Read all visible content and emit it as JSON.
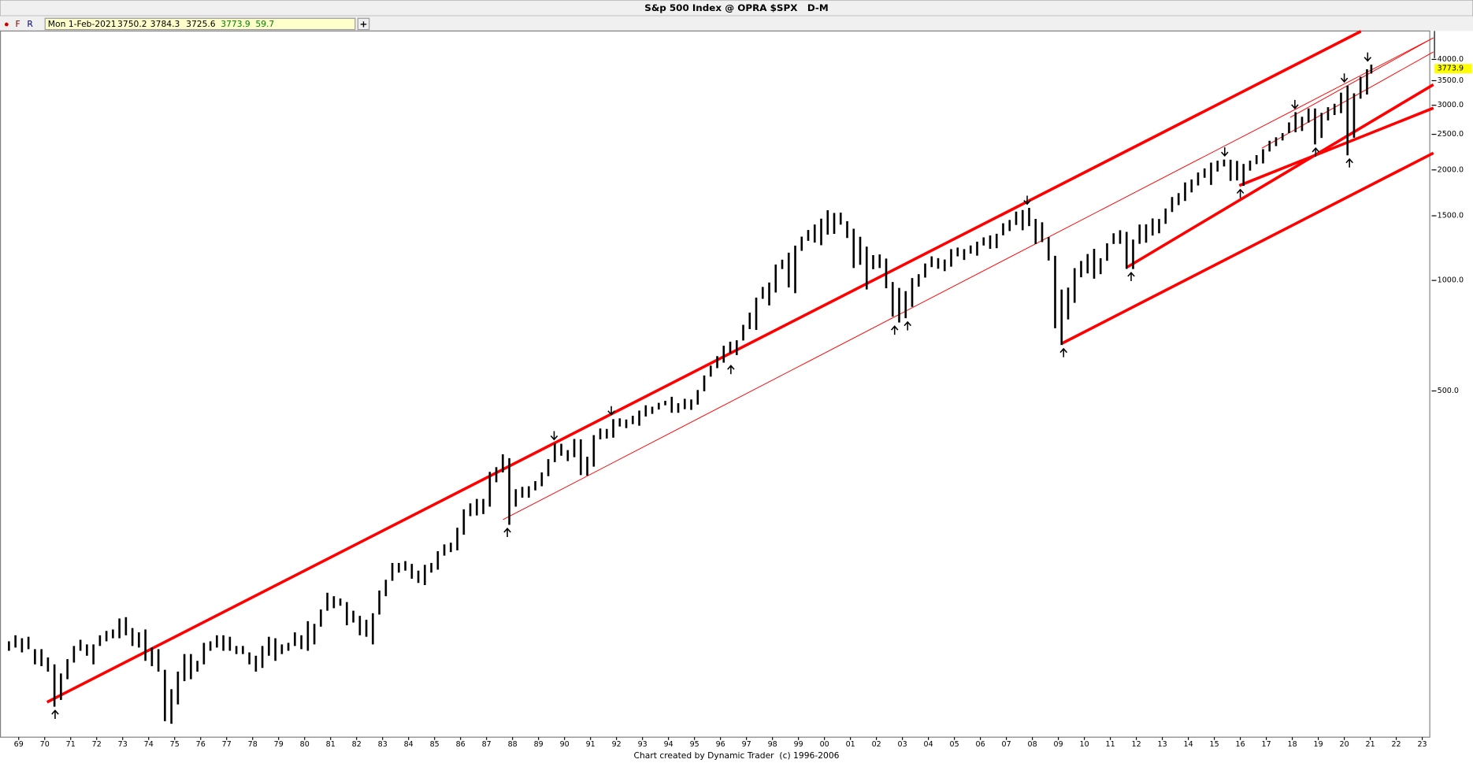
{
  "header": {
    "title": "S&p 500 Index @ OPRA $SPX   D-M",
    "buttons": [
      "F",
      "R"
    ],
    "add_button": "+",
    "readout": {
      "date": "Mon 1-Feb-2021",
      "open": "3750.2",
      "high": "3784.3",
      "low": "3725.6",
      "close": "3773.9",
      "change": "59.7"
    }
  },
  "footer": "Chart created by Dynamic Trader  (c) 1996-2006",
  "chart_data": {
    "type": "hilo",
    "log": true,
    "color": "#000000",
    "xlim": [
      1968.28,
      2023.29
    ],
    "ylim": [
      57,
      4780
    ],
    "yticks": [
      {
        "value": 500,
        "label": "500.0"
      },
      {
        "value": 1000,
        "label": "1000.0"
      },
      {
        "value": 1500,
        "label": "1500.0"
      },
      {
        "value": 2000,
        "label": "2000.0"
      },
      {
        "value": 2500,
        "label": "2500.0"
      },
      {
        "value": 3000,
        "label": "3000.0"
      },
      {
        "value": 3500,
        "label": "3500.0"
      },
      {
        "value": 4000,
        "label": "4000.0"
      }
    ],
    "xticks": [
      {
        "value": 1969,
        "label": "69"
      },
      {
        "value": 1970,
        "label": "70"
      },
      {
        "value": 1971,
        "label": "71"
      },
      {
        "value": 1972,
        "label": "72"
      },
      {
        "value": 1973,
        "label": "73"
      },
      {
        "value": 1974,
        "label": "74"
      },
      {
        "value": 1975,
        "label": "75"
      },
      {
        "value": 1976,
        "label": "76"
      },
      {
        "value": 1977,
        "label": "77"
      },
      {
        "value": 1978,
        "label": "78"
      },
      {
        "value": 1979,
        "label": "79"
      },
      {
        "value": 1980,
        "label": "80"
      },
      {
        "value": 1981,
        "label": "81"
      },
      {
        "value": 1982,
        "label": "82"
      },
      {
        "value": 1983,
        "label": "83"
      },
      {
        "value": 1984,
        "label": "84"
      },
      {
        "value": 1985,
        "label": "85"
      },
      {
        "value": 1986,
        "label": "86"
      },
      {
        "value": 1987,
        "label": "87"
      },
      {
        "value": 1988,
        "label": "88"
      },
      {
        "value": 1989,
        "label": "89"
      },
      {
        "value": 1990,
        "label": "90"
      },
      {
        "value": 1991,
        "label": "91"
      },
      {
        "value": 1992,
        "label": "92"
      },
      {
        "value": 1993,
        "label": "93"
      },
      {
        "value": 1994,
        "label": "94"
      },
      {
        "value": 1995,
        "label": "95"
      },
      {
        "value": 1996,
        "label": "96"
      },
      {
        "value": 1997,
        "label": "97"
      },
      {
        "value": 1998,
        "label": "98"
      },
      {
        "value": 1999,
        "label": "99"
      },
      {
        "value": 2000,
        "label": "00"
      },
      {
        "value": 2001,
        "label": "01"
      },
      {
        "value": 2002,
        "label": "02"
      },
      {
        "value": 2003,
        "label": "03"
      },
      {
        "value": 2004,
        "label": "04"
      },
      {
        "value": 2005,
        "label": "05"
      },
      {
        "value": 2006,
        "label": "06"
      },
      {
        "value": 2007,
        "label": "07"
      },
      {
        "value": 2008,
        "label": "08"
      },
      {
        "value": 2009,
        "label": "09"
      },
      {
        "value": 2010,
        "label": "10"
      },
      {
        "value": 2011,
        "label": "11"
      },
      {
        "value": 2012,
        "label": "12"
      },
      {
        "value": 2013,
        "label": "13"
      },
      {
        "value": 2014,
        "label": "14"
      },
      {
        "value": 2015,
        "label": "15"
      },
      {
        "value": 2016,
        "label": "16"
      },
      {
        "value": 2017,
        "label": "17"
      },
      {
        "value": 2018,
        "label": "18"
      },
      {
        "value": 2019,
        "label": "19"
      },
      {
        "value": 2020,
        "label": "20"
      },
      {
        "value": 2021,
        "label": "21"
      },
      {
        "value": 2022,
        "label": "22"
      },
      {
        "value": 2023,
        "label": "23"
      }
    ],
    "last_price": 3773.9,
    "last_price_color": "#ffff00",
    "x": [
      1968.625,
      1968.875,
      1969.125,
      1969.375,
      1969.625,
      1969.875,
      1970.125,
      1970.375,
      1970.625,
      1970.875,
      1971.125,
      1971.375,
      1971.625,
      1971.875,
      1972.125,
      1972.375,
      1972.625,
      1972.875,
      1973.125,
      1973.375,
      1973.625,
      1973.875,
      1974.125,
      1974.375,
      1974.625,
      1974.875,
      1975.125,
      1975.375,
      1975.625,
      1975.875,
      1976.125,
      1976.375,
      1976.625,
      1976.875,
      1977.125,
      1977.375,
      1977.625,
      1977.875,
      1978.125,
      1978.375,
      1978.625,
      1978.875,
      1979.125,
      1979.375,
      1979.625,
      1979.875,
      1980.125,
      1980.375,
      1980.625,
      1980.875,
      1981.125,
      1981.375,
      1981.625,
      1981.875,
      1982.125,
      1982.375,
      1982.625,
      1982.875,
      1983.125,
      1983.375,
      1983.625,
      1983.875,
      1984.125,
      1984.375,
      1984.625,
      1984.875,
      1985.125,
      1985.375,
      1985.625,
      1985.875,
      1986.125,
      1986.375,
      1986.625,
      1986.875,
      1987.125,
      1987.375,
      1987.625,
      1987.875,
      1988.125,
      1988.375,
      1988.625,
      1988.875,
      1989.125,
      1989.375,
      1989.625,
      1989.875,
      1990.125,
      1990.375,
      1990.625,
      1990.875,
      1991.125,
      1991.375,
      1991.625,
      1991.875,
      1992.125,
      1992.375,
      1992.625,
      1992.875,
      1993.125,
      1993.375,
      1993.625,
      1993.875,
      1994.125,
      1994.375,
      1994.625,
      1994.875,
      1995.125,
      1995.375,
      1995.625,
      1995.875,
      1996.125,
      1996.375,
      1996.625,
      1996.875,
      1997.125,
      1997.375,
      1997.625,
      1997.875,
      1998.125,
      1998.375,
      1998.625,
      1998.875,
      1999.125,
      1999.375,
      1999.625,
      1999.875,
      2000.125,
      2000.375,
      2000.625,
      2000.875,
      2001.125,
      2001.375,
      2001.625,
      2001.875,
      2002.125,
      2002.375,
      2002.625,
      2002.875,
      2003.125,
      2003.375,
      2003.625,
      2003.875,
      2004.125,
      2004.375,
      2004.625,
      2004.875,
      2005.125,
      2005.375,
      2005.625,
      2005.875,
      2006.125,
      2006.375,
      2006.625,
      2006.875,
      2007.125,
      2007.375,
      2007.625,
      2007.875,
      2008.125,
      2008.375,
      2008.625,
      2008.875,
      2009.125,
      2009.375,
      2009.625,
      2009.875,
      2010.125,
      2010.375,
      2010.625,
      2010.875,
      2011.125,
      2011.375,
      2011.625,
      2011.875,
      2012.125,
      2012.375,
      2012.625,
      2012.875,
      2013.125,
      2013.375,
      2013.625,
      2013.875,
      2014.125,
      2014.375,
      2014.625,
      2014.875,
      2015.125,
      2015.375,
      2015.625,
      2015.875,
      2016.125,
      2016.375,
      2016.625,
      2016.875,
      2017.125,
      2017.375,
      2017.625,
      2017.875,
      2018.125,
      2018.375,
      2018.625,
      2018.875,
      2019.125,
      2019.375,
      2019.625,
      2019.875,
      2020.125,
      2020.375,
      2020.625,
      2020.875,
      2021.04
    ],
    "high": [
      104,
      108,
      106,
      107,
      99,
      99,
      94,
      90,
      85,
      93,
      101,
      105,
      102,
      102,
      108,
      111,
      112,
      120,
      121,
      113,
      110,
      112,
      100,
      99,
      87,
      77,
      86,
      96,
      96,
      92,
      103,
      104,
      108,
      108,
      107,
      101,
      101,
      97,
      95,
      101,
      107,
      106,
      102,
      103,
      110,
      108,
      118,
      116,
      127,
      141,
      138,
      136,
      133,
      126,
      122,
      119,
      124,
      143,
      153,
      170,
      170,
      172,
      169,
      162,
      168,
      170,
      183,
      191,
      193,
      212,
      238,
      247,
      254,
      254,
      301,
      310,
      336,
      328,
      270,
      274,
      275,
      284,
      300,
      326,
      360,
      359,
      345,
      370,
      369,
      331,
      379,
      395,
      394,
      419,
      421,
      418,
      428,
      442,
      457,
      453,
      464,
      470,
      482,
      463,
      476,
      474,
      503,
      551,
      586,
      622,
      664,
      681,
      687,
      757,
      817,
      898,
      960,
      987,
      1105,
      1139,
      1190,
      1244,
      1316,
      1372,
      1420,
      1473,
      1553,
      1527,
      1530,
      1450,
      1383,
      1315,
      1236,
      1172,
      1177,
      1147,
      990,
      954,
      935,
      1015,
      1040,
      1112,
      1163,
      1150,
      1140,
      1217,
      1229,
      1217,
      1245,
      1275,
      1310,
      1326,
      1340,
      1431,
      1461,
      1540,
      1555,
      1576,
      1471,
      1440,
      1313,
      1167,
      944,
      956,
      1080,
      1130,
      1180,
      1219,
      1149,
      1262,
      1344,
      1370,
      1356,
      1292,
      1420,
      1422,
      1475,
      1470,
      1570,
      1687,
      1729,
      1849,
      1884,
      1968,
      2019,
      2094,
      2119,
      2134,
      2132,
      2116,
      2076,
      2120,
      2194,
      2278,
      2401,
      2454,
      2519,
      2694,
      2873,
      2791,
      2941,
      2940,
      2860,
      2964,
      3028,
      3247,
      3394,
      3233,
      3588,
      3760,
      3870
    ],
    "low": [
      98,
      100,
      97,
      99,
      90,
      89,
      86,
      69,
      72,
      82,
      91,
      98,
      95,
      90,
      101,
      104,
      106,
      106,
      108,
      101,
      100,
      92,
      89,
      86,
      63,
      62,
      70,
      81,
      82,
      86,
      90,
      98,
      100,
      98,
      98,
      96,
      96,
      90,
      86,
      88,
      95,
      92,
      96,
      98,
      101,
      99,
      98,
      102,
      114,
      126,
      128,
      130,
      115,
      117,
      108,
      107,
      102,
      123,
      138,
      152,
      160,
      162,
      154,
      150,
      148,
      160,
      163,
      178,
      182,
      184,
      203,
      228,
      229,
      231,
      242,
      282,
      300,
      216,
      242,
      256,
      256,
      268,
      275,
      293,
      320,
      333,
      322,
      330,
      295,
      294,
      311,
      369,
      371,
      373,
      400,
      396,
      406,
      402,
      426,
      433,
      445,
      457,
      436,
      436,
      446,
      444,
      459,
      499,
      547,
      577,
      597,
      633,
      626,
      686,
      737,
      733,
      891,
      855,
      927,
      1074,
      957,
      923,
      1204,
      1282,
      1268,
      1247,
      1333,
      1339,
      1419,
      1305,
      1081,
      1103,
      945,
      1073,
      1081,
      952,
      797,
      768,
      789,
      847,
      962,
      1018,
      1087,
      1076,
      1060,
      1090,
      1163,
      1137,
      1183,
      1168,
      1245,
      1219,
      1224,
      1327,
      1363,
      1416,
      1370,
      1406,
      1256,
      1272,
      1133,
      741,
      667,
      783,
      869,
      1020,
      1045,
      1011,
      1040,
      1131,
      1257,
      1258,
      1075,
      1074,
      1258,
      1267,
      1325,
      1344,
      1426,
      1536,
      1604,
      1646,
      1737,
      1814,
      1904,
      1820,
      1980,
      2044,
      1867,
      1872,
      1810,
      1991,
      2074,
      2083,
      2245,
      2322,
      2406,
      2520,
      2533,
      2553,
      2691,
      2347,
      2444,
      2728,
      2822,
      2855,
      2192,
      2447,
      3127,
      3209,
      3660
    ],
    "trendline_color": "#ff0000",
    "trendlines": [
      {
        "x": [
          1970.09,
          2020.64
        ],
        "y": [
          71,
          4770
        ],
        "width": "thick"
      },
      {
        "x": [
          1987.63,
          2023.43
        ],
        "y": [
          223,
          4580
        ],
        "width": "thin"
      },
      {
        "x": [
          2011.65,
          2023.43
        ],
        "y": [
          1087,
          3415
        ],
        "width": "thick"
      },
      {
        "x": [
          2009.11,
          2023.43
        ],
        "y": [
          672,
          2224
        ],
        "width": "thick"
      },
      {
        "x": [
          2015.96,
          2023.43
        ],
        "y": [
          1813,
          2948
        ],
        "width": "thick"
      },
      {
        "x": [
          2016.83,
          2023.43
        ],
        "y": [
          2292,
          4192
        ],
        "width": "thin"
      },
      {
        "x": [
          2017.92,
          2023.43
        ],
        "y": [
          2780,
          4580
        ],
        "width": "thin"
      }
    ],
    "arrows": [
      {
        "x": 1970.4,
        "y": 69,
        "dir": "up"
      },
      {
        "x": 1987.8,
        "y": 216,
        "dir": "up"
      },
      {
        "x": 1996.4,
        "y": 600,
        "dir": "up"
      },
      {
        "x": 2002.7,
        "y": 768,
        "dir": "up"
      },
      {
        "x": 2003.2,
        "y": 789,
        "dir": "up"
      },
      {
        "x": 2009.2,
        "y": 667,
        "dir": "up"
      },
      {
        "x": 2011.8,
        "y": 1075,
        "dir": "up"
      },
      {
        "x": 2016.0,
        "y": 1810,
        "dir": "up"
      },
      {
        "x": 2018.9,
        "y": 2347,
        "dir": "up"
      },
      {
        "x": 2020.2,
        "y": 2192,
        "dir": "up"
      },
      {
        "x": 1989.6,
        "y": 360,
        "dir": "down"
      },
      {
        "x": 1991.8,
        "y": 421,
        "dir": "down"
      },
      {
        "x": 2007.8,
        "y": 1576,
        "dir": "down"
      },
      {
        "x": 2015.4,
        "y": 2134,
        "dir": "down"
      },
      {
        "x": 2018.1,
        "y": 2873,
        "dir": "down"
      },
      {
        "x": 2020.0,
        "y": 3394,
        "dir": "down"
      },
      {
        "x": 2020.9,
        "y": 3870,
        "dir": "down"
      }
    ]
  }
}
